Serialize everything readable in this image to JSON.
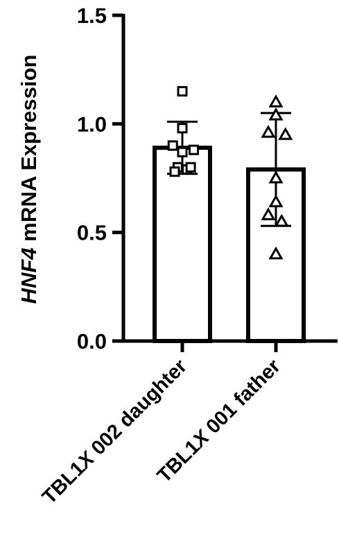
{
  "chart_data": {
    "type": "bar",
    "title": "",
    "ylabel_italic": "HNF4",
    "ylabel_rest": " mRNA Expression",
    "ylim": [
      0,
      1.5
    ],
    "yticks": [
      "0.0",
      "0.5",
      "1.0",
      "1.5"
    ],
    "ytick_values": [
      0,
      0.5,
      1.0,
      1.5
    ],
    "categories": [
      {
        "pre": "TBL1",
        "ital": "X",
        "post": " 002 daughter"
      },
      {
        "pre": "TBL1",
        "ital": "X",
        "post": " 001 father"
      }
    ],
    "values": [
      0.89,
      0.79
    ],
    "sd": [
      0.12,
      0.26
    ],
    "markers": [
      "square",
      "triangle"
    ],
    "points": [
      [
        {
          "x": 0.0,
          "y": 1.15
        },
        {
          "x": 0.0,
          "y": 0.98
        },
        {
          "x": -0.25,
          "y": 0.9
        },
        {
          "x": 0.0,
          "y": 0.87
        },
        {
          "x": 0.3,
          "y": 0.88
        },
        {
          "x": -0.12,
          "y": 0.8
        },
        {
          "x": 0.12,
          "y": 0.79
        },
        {
          "x": -0.2,
          "y": 0.78
        },
        {
          "x": 0.22,
          "y": 0.8
        }
      ],
      [
        {
          "x": 0.0,
          "y": 1.1
        },
        {
          "x": 0.0,
          "y": 1.04
        },
        {
          "x": -0.2,
          "y": 0.96
        },
        {
          "x": 0.25,
          "y": 0.95
        },
        {
          "x": 0.0,
          "y": 0.75
        },
        {
          "x": 0.0,
          "y": 0.64
        },
        {
          "x": -0.2,
          "y": 0.58
        },
        {
          "x": 0.15,
          "y": 0.55
        },
        {
          "x": 0.0,
          "y": 0.4
        }
      ]
    ]
  }
}
